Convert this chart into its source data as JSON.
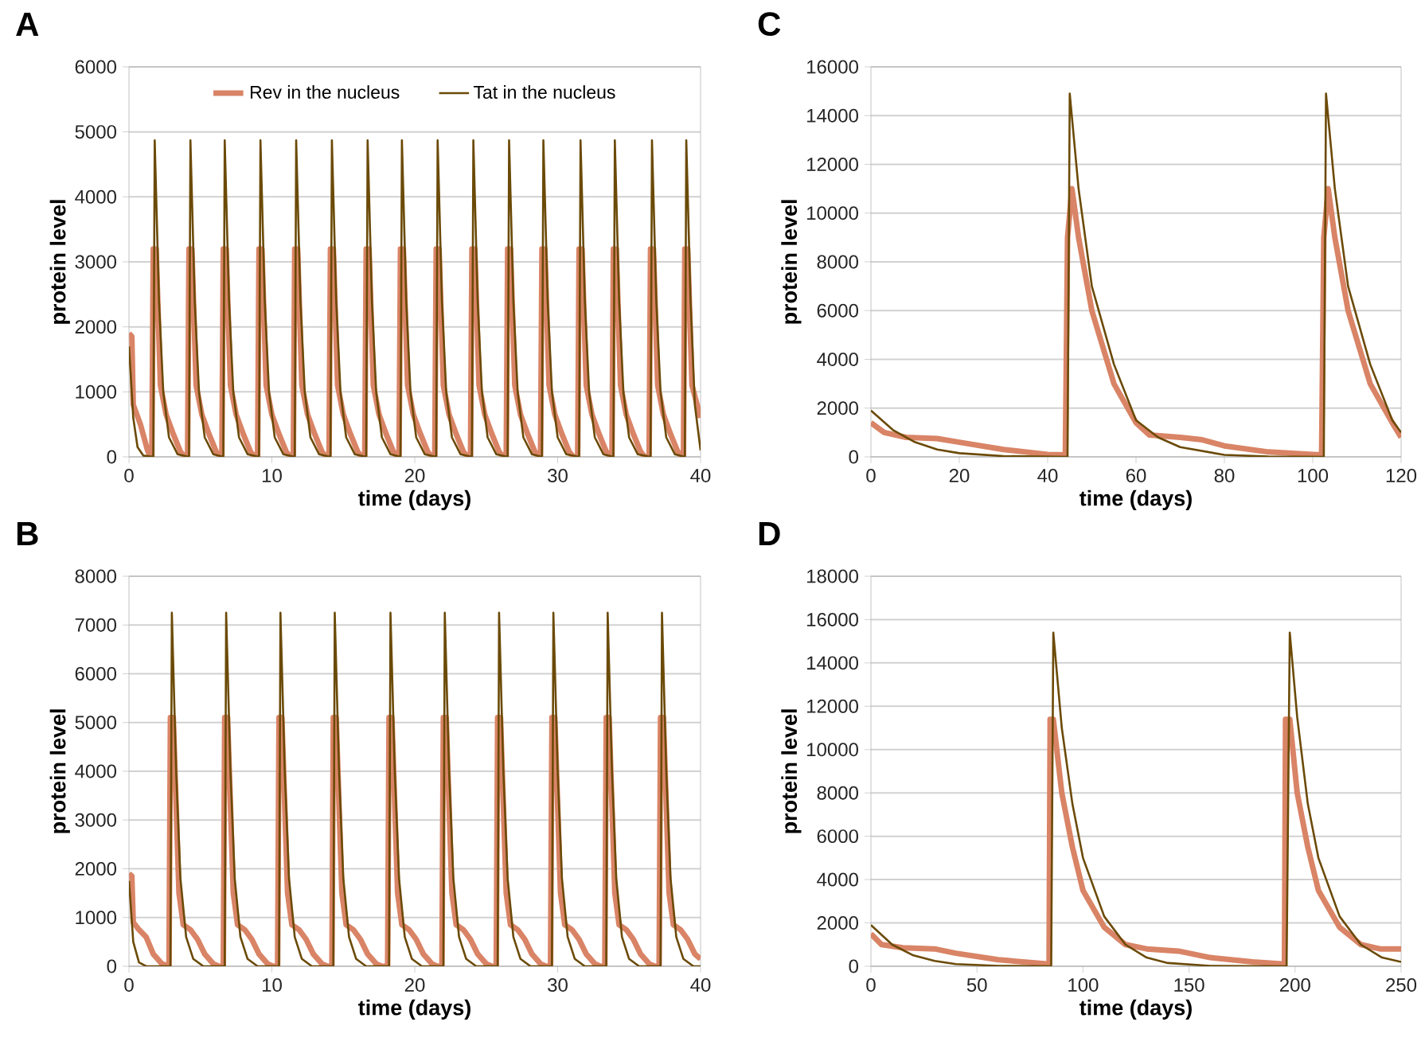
{
  "chart_data": [
    {
      "type": "line",
      "title": "A",
      "xlabel": "time (days)",
      "ylabel": "protein level",
      "xlim": [
        0,
        40
      ],
      "xticks": [
        0,
        10,
        20,
        30,
        40
      ],
      "ylim": [
        0,
        6000
      ],
      "yticks": [
        0,
        1000,
        2000,
        3000,
        4000,
        5000,
        6000
      ],
      "grid": "y",
      "legend": "top",
      "marker": "none",
      "line_style": "solid",
      "series": [
        {
          "name": "Rev in the nucleus",
          "color": "#d98466",
          "x": [
            0,
            0.2,
            0.3,
            0.8,
            1.3,
            1.5,
            1.6,
            1.7,
            1.9,
            2.2,
            2.6,
            3.1,
            3.6,
            3.9,
            4.1,
            4.2,
            4.4,
            4.7,
            5.1,
            5.6,
            6.1,
            6.4,
            6.5,
            6.6,
            6.8,
            7.1,
            7.5,
            8.0,
            8.5,
            8.8,
            9.0,
            9.1,
            9.3,
            9.6,
            10.0,
            10.5,
            11.0,
            11.3,
            11.5,
            11.6,
            11.8,
            12.1,
            12.5,
            13.0,
            13.5,
            13.8,
            14.0,
            14.1,
            14.3,
            14.6,
            15.0,
            15.5,
            16.0,
            16.3,
            16.5,
            16.6,
            16.8,
            17.1,
            17.5,
            18.0,
            18.5,
            18.8,
            18.9,
            19.0,
            19.2,
            19.5,
            19.9,
            20.4,
            20.9,
            21.2,
            21.4,
            21.5,
            21.7,
            22.0,
            22.4,
            22.9,
            23.4,
            23.7,
            23.9,
            24.0,
            24.2,
            24.5,
            24.9,
            25.4,
            25.9,
            26.2,
            26.4,
            26.5,
            26.7,
            27.0,
            27.4,
            27.9,
            28.4,
            28.7,
            28.8,
            28.9,
            29.1,
            29.4,
            29.8,
            30.3,
            30.8,
            31.1,
            31.4,
            31.5,
            31.7,
            32.0,
            32.4,
            32.9,
            33.4,
            33.7,
            33.8,
            33.9,
            34.1,
            34.4,
            34.8,
            35.3,
            35.8,
            36.1,
            36.4,
            36.5,
            36.7,
            37.0,
            37.4,
            37.9,
            38.4,
            38.7,
            38.8,
            38.9,
            39.1,
            39.4,
            40.0
          ],
          "values": [
            1900,
            1850,
            800,
            500,
            100,
            0,
            0,
            3200,
            3200,
            1100,
            650,
            350,
            80,
            0,
            0,
            3200,
            3200,
            1100,
            650,
            350,
            80,
            0,
            0,
            3200,
            3200,
            1100,
            650,
            350,
            80,
            0,
            0,
            3200,
            3200,
            1100,
            650,
            350,
            80,
            0,
            0,
            3200,
            3200,
            1100,
            650,
            350,
            80,
            0,
            0,
            3200,
            3200,
            1100,
            650,
            350,
            80,
            0,
            0,
            3200,
            3200,
            1100,
            650,
            350,
            80,
            0,
            0,
            3200,
            3200,
            1100,
            650,
            350,
            80,
            0,
            0,
            3200,
            3200,
            1100,
            650,
            350,
            80,
            0,
            0,
            3200,
            3200,
            1100,
            650,
            350,
            80,
            0,
            0,
            3200,
            3200,
            1100,
            650,
            350,
            80,
            0,
            0,
            3200,
            3200,
            1100,
            650,
            350,
            80,
            0,
            0,
            3200,
            3200,
            1100,
            650,
            350,
            80,
            0,
            0,
            3200,
            3200,
            1100,
            650,
            350,
            80,
            0,
            0,
            3200,
            3200,
            1100,
            650,
            350,
            80,
            0,
            0,
            3200,
            3200,
            1100,
            600
          ]
        },
        {
          "name": "Tat in the nucleus",
          "color": "#6b4a07",
          "x": [
            0,
            0.3,
            0.6,
            1.0,
            1.7,
            1.8,
            2.1,
            2.4,
            2.8,
            3.4,
            4.2,
            4.3,
            4.6,
            4.9,
            5.3,
            5.9,
            6.6,
            6.7,
            7.0,
            7.3,
            7.7,
            8.3,
            9.1,
            9.2,
            9.5,
            9.8,
            10.2,
            10.8,
            11.6,
            11.7,
            12.0,
            12.3,
            12.7,
            13.3,
            14.1,
            14.2,
            14.5,
            14.8,
            15.2,
            15.8,
            16.6,
            16.7,
            17.0,
            17.3,
            17.7,
            18.3,
            19.0,
            19.1,
            19.4,
            19.7,
            20.1,
            20.7,
            21.5,
            21.6,
            21.9,
            22.2,
            22.6,
            23.2,
            24.0,
            24.1,
            24.4,
            24.7,
            25.1,
            25.7,
            26.5,
            26.6,
            26.9,
            27.2,
            27.6,
            28.2,
            28.9,
            29.0,
            29.3,
            29.6,
            30.0,
            30.6,
            31.5,
            31.6,
            31.9,
            32.2,
            32.6,
            33.2,
            33.9,
            34.0,
            34.3,
            34.6,
            35.0,
            35.6,
            36.5,
            36.6,
            36.9,
            37.2,
            37.6,
            38.2,
            38.9,
            39.0,
            39.3,
            39.6,
            40.0
          ],
          "values": [
            1700,
            600,
            150,
            20,
            0,
            4870,
            2400,
            1000,
            300,
            40,
            0,
            4870,
            2400,
            1000,
            300,
            40,
            0,
            4870,
            2400,
            1000,
            300,
            40,
            0,
            4870,
            2400,
            1000,
            300,
            40,
            0,
            4870,
            2400,
            1000,
            300,
            40,
            0,
            4870,
            2400,
            1000,
            300,
            40,
            0,
            4870,
            2400,
            1000,
            300,
            40,
            0,
            4870,
            2400,
            1000,
            300,
            40,
            0,
            4870,
            2400,
            1000,
            300,
            40,
            0,
            4870,
            2400,
            1000,
            300,
            40,
            0,
            4870,
            2400,
            1000,
            300,
            40,
            0,
            4870,
            2400,
            1000,
            300,
            40,
            0,
            4870,
            2400,
            1000,
            300,
            40,
            0,
            4870,
            2400,
            1000,
            300,
            40,
            0,
            4870,
            2400,
            1000,
            300,
            40,
            0,
            4870,
            2400,
            800,
            100
          ]
        }
      ]
    },
    {
      "type": "line",
      "title": "C",
      "xlabel": "time (days)",
      "ylabel": "protein level",
      "xlim": [
        0,
        120
      ],
      "xticks": [
        0,
        20,
        40,
        60,
        80,
        100,
        120
      ],
      "ylim": [
        0,
        16000
      ],
      "yticks": [
        0,
        2000,
        4000,
        6000,
        8000,
        10000,
        12000,
        14000,
        16000
      ],
      "grid": "y",
      "marker": "none",
      "line_style": "solid",
      "series": [
        {
          "color": "#d98466",
          "x": [
            0,
            3,
            8,
            15,
            20,
            30,
            40,
            44,
            44.5,
            45.5,
            47,
            50,
            55,
            60,
            63,
            70,
            75,
            80,
            90,
            100,
            102,
            102.5,
            103.5,
            105,
            108,
            113,
            118,
            120
          ],
          "values": [
            1400,
            1000,
            800,
            750,
            600,
            300,
            100,
            80,
            9000,
            11000,
            9000,
            6000,
            3000,
            1400,
            900,
            800,
            700,
            450,
            200,
            100,
            80,
            9000,
            11000,
            9000,
            6000,
            3000,
            1400,
            800
          ]
        },
        {
          "color": "#6b4a07",
          "x": [
            0,
            5,
            10,
            15,
            20,
            30,
            44.5,
            45,
            47,
            50,
            55,
            60,
            65,
            70,
            80,
            90,
            102.5,
            103,
            105,
            108,
            113,
            118,
            120
          ],
          "values": [
            1900,
            1100,
            600,
            300,
            150,
            30,
            0,
            14900,
            11000,
            7000,
            3800,
            1500,
            800,
            400,
            80,
            10,
            0,
            14900,
            11000,
            7000,
            3800,
            1500,
            1000
          ]
        }
      ]
    },
    {
      "type": "line",
      "title": "B",
      "xlabel": "time (days)",
      "ylabel": "protein level",
      "xlim": [
        0,
        40
      ],
      "xticks": [
        0,
        10,
        20,
        30,
        40
      ],
      "ylim": [
        0,
        8000
      ],
      "yticks": [
        0,
        1000,
        2000,
        3000,
        4000,
        5000,
        6000,
        7000,
        8000
      ],
      "grid": "y",
      "marker": "none",
      "line_style": "solid",
      "series": [
        {
          "color": "#d98466",
          "x": [
            0,
            0.2,
            0.3,
            0.7,
            1.2,
            1.7,
            2.3,
            2.8,
            2.9,
            3.1,
            3.5,
            3.8,
            4.3,
            4.8,
            5.3,
            5.9,
            6.3,
            6.6,
            6.7,
            6.9,
            7.3,
            7.6,
            8.1,
            8.6,
            9.1,
            9.7,
            10.1,
            10.4,
            10.5,
            10.7,
            11.1,
            11.4,
            11.9,
            12.4,
            12.9,
            13.5,
            13.9,
            14.2,
            14.3,
            14.5,
            14.9,
            15.2,
            15.7,
            16.2,
            16.7,
            17.3,
            17.7,
            18.1,
            18.2,
            18.4,
            18.8,
            19.1,
            19.6,
            20.1,
            20.6,
            21.2,
            21.6,
            21.9,
            22.0,
            22.2,
            22.6,
            22.9,
            23.4,
            23.9,
            24.4,
            25.0,
            25.4,
            25.7,
            25.8,
            26.0,
            26.4,
            26.7,
            27.2,
            27.7,
            28.2,
            28.8,
            29.2,
            29.5,
            29.6,
            29.8,
            30.2,
            30.5,
            31.0,
            31.5,
            32.0,
            32.6,
            33.0,
            33.3,
            33.4,
            33.6,
            34.0,
            34.3,
            34.8,
            35.3,
            35.8,
            36.4,
            36.8,
            37.1,
            37.2,
            37.4,
            37.8,
            38.1,
            38.6,
            39.1,
            39.6,
            40.0
          ],
          "values": [
            1900,
            1850,
            900,
            750,
            600,
            250,
            50,
            0,
            5100,
            5100,
            1500,
            850,
            750,
            550,
            250,
            50,
            0,
            0,
            5100,
            5100,
            1500,
            850,
            750,
            550,
            250,
            50,
            0,
            0,
            5100,
            5100,
            1500,
            850,
            750,
            550,
            250,
            50,
            0,
            0,
            5100,
            5100,
            1500,
            850,
            750,
            550,
            250,
            50,
            0,
            0,
            5100,
            5100,
            1500,
            850,
            750,
            550,
            250,
            50,
            0,
            0,
            5100,
            5100,
            1500,
            850,
            750,
            550,
            250,
            50,
            0,
            0,
            5100,
            5100,
            1500,
            850,
            750,
            550,
            250,
            50,
            0,
            0,
            5100,
            5100,
            1500,
            850,
            750,
            550,
            250,
            50,
            0,
            0,
            5100,
            5100,
            1500,
            850,
            750,
            550,
            250,
            50,
            0,
            0,
            5100,
            5100,
            1500,
            850,
            750,
            550,
            250,
            150
          ]
        },
        {
          "color": "#6b4a07",
          "x": [
            0,
            0.3,
            0.7,
            1.2,
            2.9,
            3.0,
            3.3,
            3.6,
            4.0,
            4.5,
            5.2,
            6.7,
            6.8,
            7.1,
            7.4,
            7.8,
            8.3,
            9.0,
            10.5,
            10.6,
            10.9,
            11.2,
            11.6,
            12.1,
            12.8,
            14.3,
            14.4,
            14.7,
            15.0,
            15.4,
            15.9,
            16.6,
            18.2,
            18.3,
            18.6,
            18.9,
            19.3,
            19.8,
            20.5,
            22.0,
            22.1,
            22.4,
            22.7,
            23.1,
            23.6,
            24.3,
            25.8,
            25.9,
            26.2,
            26.5,
            26.9,
            27.4,
            28.1,
            29.6,
            29.7,
            30.0,
            30.3,
            30.7,
            31.2,
            31.9,
            33.4,
            33.5,
            33.8,
            34.1,
            34.5,
            35.0,
            35.7,
            37.2,
            37.3,
            37.6,
            37.9,
            38.3,
            38.8,
            39.5,
            40.0
          ],
          "values": [
            1750,
            500,
            80,
            0,
            0,
            7250,
            4000,
            1800,
            600,
            150,
            0,
            0,
            7250,
            4000,
            1800,
            600,
            150,
            0,
            0,
            7250,
            4000,
            1800,
            600,
            150,
            0,
            0,
            7250,
            4000,
            1800,
            600,
            150,
            0,
            0,
            7250,
            4000,
            1800,
            600,
            150,
            0,
            0,
            7250,
            4000,
            1800,
            600,
            150,
            0,
            0,
            7250,
            4000,
            1800,
            600,
            150,
            0,
            0,
            7250,
            4000,
            1800,
            600,
            150,
            0,
            0,
            7250,
            4000,
            1800,
            600,
            150,
            0,
            0,
            7250,
            4000,
            1800,
            600,
            150,
            0,
            0
          ]
        }
      ]
    },
    {
      "type": "line",
      "title": "D",
      "xlabel": "time (days)",
      "ylabel": "protein level",
      "xlim": [
        0,
        250
      ],
      "xticks": [
        0,
        50,
        100,
        150,
        200,
        250
      ],
      "ylim": [
        0,
        18000
      ],
      "yticks": [
        0,
        2000,
        4000,
        6000,
        8000,
        10000,
        12000,
        14000,
        16000,
        18000
      ],
      "grid": "y",
      "marker": "none",
      "line_style": "solid",
      "series": [
        {
          "color": "#d98466",
          "x": [
            0,
            5,
            15,
            30,
            40,
            60,
            84,
            84.5,
            86,
            90,
            95,
            100,
            110,
            120,
            130,
            145,
            160,
            180,
            195,
            195.5,
            197.5,
            201,
            206,
            211,
            221,
            231,
            240,
            250
          ],
          "values": [
            1500,
            1000,
            850,
            800,
            600,
            300,
            100,
            11400,
            11400,
            8000,
            5500,
            3500,
            1800,
            1000,
            800,
            700,
            400,
            200,
            100,
            11400,
            11400,
            8000,
            5500,
            3500,
            1800,
            1000,
            800,
            800
          ]
        },
        {
          "color": "#6b4a07",
          "x": [
            0,
            10,
            20,
            30,
            40,
            60,
            85,
            86,
            90,
            95,
            100,
            110,
            120,
            130,
            140,
            160,
            196,
            197.5,
            201,
            206,
            211,
            221,
            231,
            241,
            250
          ],
          "values": [
            1900,
            1000,
            500,
            250,
            100,
            20,
            0,
            15400,
            11000,
            7500,
            5000,
            2300,
            1000,
            400,
            150,
            20,
            0,
            15400,
            11500,
            7500,
            5000,
            2300,
            1000,
            400,
            200
          ]
        }
      ]
    }
  ]
}
